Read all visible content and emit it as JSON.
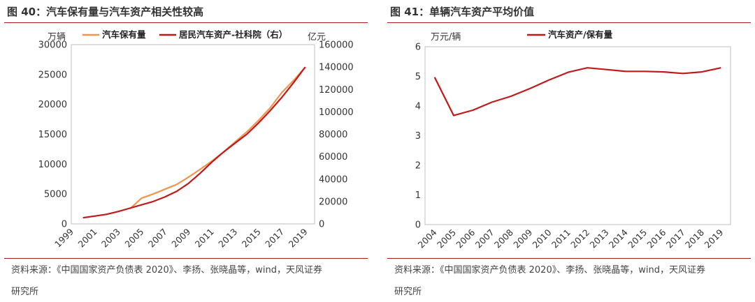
{
  "left": {
    "title": "图 40：汽车保有量与汽车资产相关性较高",
    "unit_left": "万辆",
    "unit_right": "亿元",
    "source_line1": "资料来源：《中国国家资产负债表 2020》、李扬、张晓晶等，wind，天风证券",
    "source_line2": "研究所"
  },
  "right": {
    "title": "图 41：单辆汽车资产平均价值",
    "unit_left": "万元/辆",
    "source_line1": "资料来源：《中国国家资产负债表 2020》、李扬、张晓晶等，wind，天风证券",
    "source_line2": "研究所"
  },
  "chart_data": [
    {
      "type": "line",
      "x": [
        2000,
        2001,
        2002,
        2003,
        2004,
        2005,
        2006,
        2007,
        2008,
        2009,
        2010,
        2011,
        2012,
        2013,
        2014,
        2015,
        2016,
        2017,
        2018,
        2019
      ],
      "xticks": [
        "1999",
        "2001",
        "2003",
        "2005",
        "2007",
        "2009",
        "2011",
        "2013",
        "2015",
        "2017",
        "2019"
      ],
      "xlim": [
        1999,
        2019.8
      ],
      "y_left_lim": [
        0,
        30000
      ],
      "y_left_ticks": [
        "0",
        "5000",
        "10000",
        "15000",
        "20000",
        "25000",
        "30000"
      ],
      "y_right_lim": [
        0,
        160000
      ],
      "y_right_ticks": [
        "0",
        "20000",
        "40000",
        "60000",
        "80000",
        "100000",
        "120000",
        "140000",
        "160000"
      ],
      "series": [
        {
          "name": "汽车保有量",
          "axis": "left",
          "color": "#f0944e",
          "x": [
            2004,
            2005,
            2006,
            2007,
            2008,
            2009,
            2010,
            2011,
            2012,
            2013,
            2014,
            2015,
            2016,
            2017,
            2018,
            2019
          ],
          "values": [
            2500,
            4300,
            5000,
            5800,
            6600,
            7800,
            9100,
            10500,
            12000,
            13700,
            15400,
            17300,
            19400,
            22000,
            24000,
            26200
          ]
        },
        {
          "name": "居民汽车资产-社科院（右）",
          "axis": "right",
          "color": "#c01a1a",
          "x": [
            2000,
            2001,
            2002,
            2003,
            2004,
            2005,
            2006,
            2007,
            2008,
            2009,
            2010,
            2011,
            2012,
            2013,
            2014,
            2015,
            2016,
            2017,
            2018,
            2019
          ],
          "values": [
            5500,
            7000,
            8500,
            11000,
            14000,
            17000,
            20000,
            24000,
            29000,
            36000,
            45000,
            55000,
            64000,
            72000,
            80000,
            90000,
            101000,
            113000,
            126000,
            140000
          ]
        }
      ],
      "legend_position": "top"
    },
    {
      "type": "line",
      "x": [
        2004,
        2005,
        2006,
        2007,
        2008,
        2009,
        2010,
        2011,
        2012,
        2013,
        2014,
        2015,
        2016,
        2017,
        2018,
        2019
      ],
      "categories": [
        "2004",
        "2005",
        "2006",
        "2007",
        "2008",
        "2009",
        "2010",
        "2011",
        "2012",
        "2013",
        "2014",
        "2015",
        "2016",
        "2017",
        "2018",
        "2019"
      ],
      "ylim": [
        0,
        6
      ],
      "yticks": [
        "0",
        "1",
        "2",
        "3",
        "4",
        "5",
        "6"
      ],
      "series": [
        {
          "name": "汽车资产/保有量",
          "color": "#c01a1a",
          "values": [
            4.97,
            3.68,
            3.86,
            4.13,
            4.33,
            4.59,
            4.88,
            5.14,
            5.29,
            5.23,
            5.17,
            5.17,
            5.15,
            5.1,
            5.15,
            5.29
          ]
        }
      ],
      "legend_position": "top"
    }
  ]
}
